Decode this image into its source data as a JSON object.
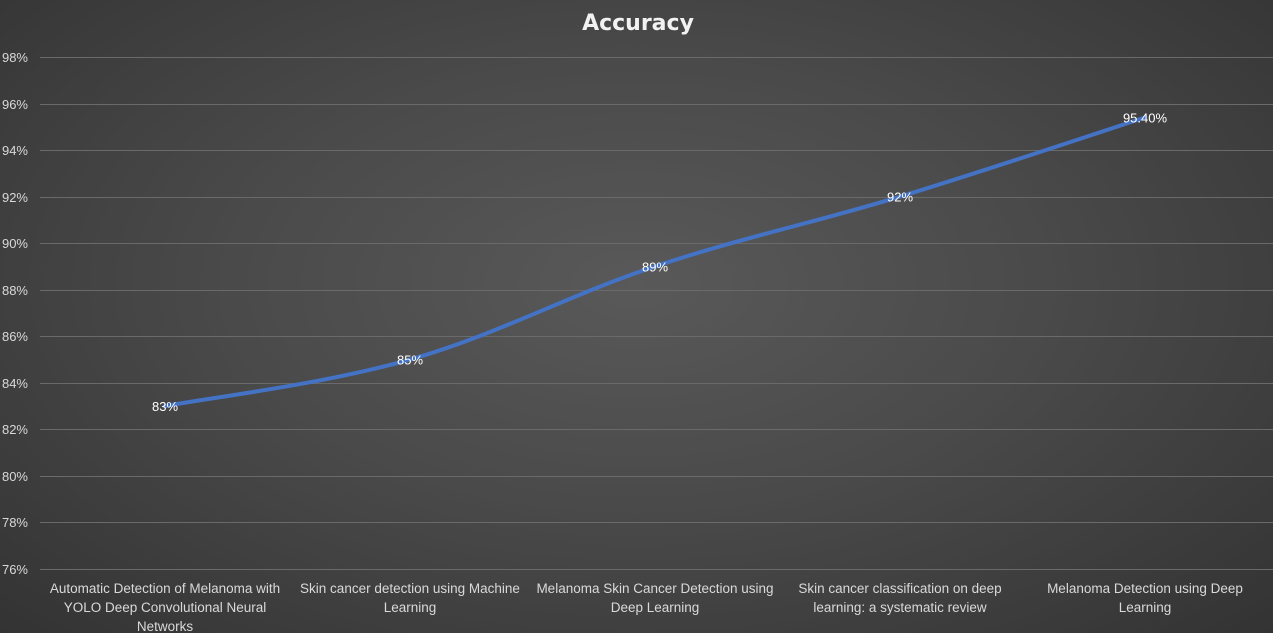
{
  "chart_data": {
    "type": "line",
    "title": "Accuracy",
    "xlabel": "",
    "ylabel": "",
    "categories": [
      [
        "Automatic Detection of Melanoma with",
        "YOLO Deep Convolutional Neural",
        "Networks"
      ],
      [
        "Skin cancer detection using Machine",
        "Learning"
      ],
      [
        "Melanoma Skin Cancer Detection using",
        "Deep Learning"
      ],
      [
        "Skin cancer classification on deep",
        "learning: a systematic review"
      ],
      [
        "Melanoma Detection using Deep",
        "Learning"
      ]
    ],
    "series": [
      {
        "values": [
          83,
          85,
          89,
          92,
          95.4
        ],
        "data_labels": [
          "83%",
          "85%",
          "89%",
          "92%",
          "95.40%"
        ]
      }
    ],
    "ylim": [
      76,
      98
    ],
    "yticks": [
      76,
      78,
      80,
      82,
      84,
      86,
      88,
      90,
      92,
      94,
      96,
      98
    ],
    "ytick_labels": [
      "76%",
      "78%",
      "80%",
      "82%",
      "84%",
      "86%",
      "88%",
      "90%",
      "92%",
      "94%",
      "96%",
      "98%"
    ],
    "grid": true,
    "legend": "none",
    "colors": {
      "line": "#4472c4",
      "gridline": "#6a6a6a",
      "text": "#d9d9d9",
      "title": "#f2f2f2"
    }
  }
}
